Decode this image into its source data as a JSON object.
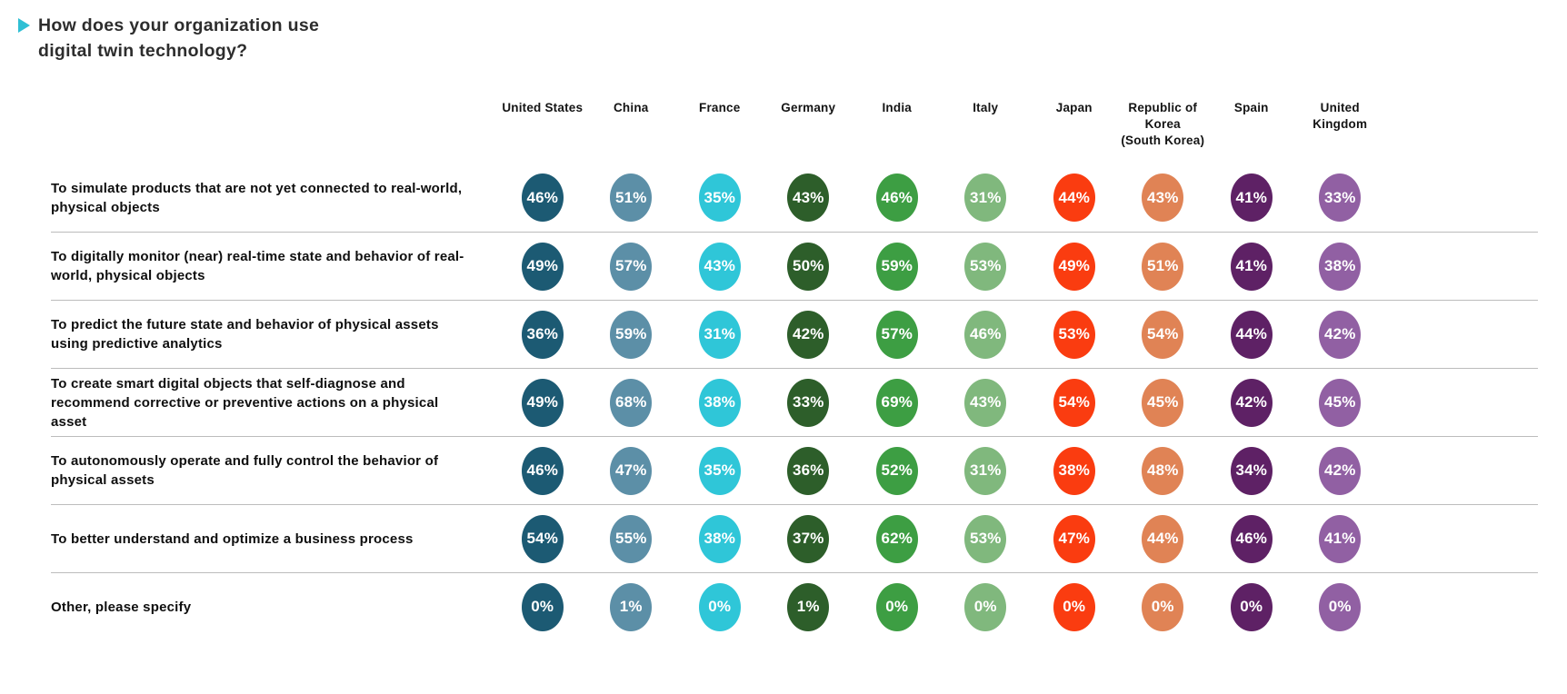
{
  "header": {
    "title": "How does your organization use digital twin technology?",
    "bullet_color": "#2fbfd4"
  },
  "chart_data": {
    "type": "table",
    "title": "How does your organization use digital twin technology?",
    "value_suffix": "%",
    "legend_position": "none",
    "columns": [
      {
        "label": "United States",
        "color": "#1c5a73"
      },
      {
        "label": "China",
        "color": "#5c8fa7"
      },
      {
        "label": "France",
        "color": "#2fc6d8"
      },
      {
        "label": "Germany",
        "color": "#2d5e2a"
      },
      {
        "label": "India",
        "color": "#3d9e43"
      },
      {
        "label": "Italy",
        "color": "#80b87d"
      },
      {
        "label": "Japan",
        "color": "#fa3c10"
      },
      {
        "label": "Republic of Korea\n(South Korea)",
        "color": "#e08355"
      },
      {
        "label": "Spain",
        "color": "#5e2165"
      },
      {
        "label": "United\nKingdom",
        "color": "#9160a3"
      }
    ],
    "rows": [
      {
        "label": "To simulate products that are not yet connected to real-world, physical objects",
        "values": [
          46,
          51,
          35,
          43,
          46,
          31,
          44,
          43,
          41,
          33
        ]
      },
      {
        "label": "To digitally monitor (near) real-time state and behavior of real-world, physical objects",
        "values": [
          49,
          57,
          43,
          50,
          59,
          53,
          49,
          51,
          41,
          38
        ]
      },
      {
        "label": "To predict the future state and behavior of physical assets using predictive analytics",
        "values": [
          36,
          59,
          31,
          42,
          57,
          46,
          53,
          54,
          44,
          42
        ]
      },
      {
        "label": "To create smart digital objects that self-diagnose and recommend corrective or preventive actions on a physical asset",
        "values": [
          49,
          68,
          38,
          33,
          69,
          43,
          54,
          45,
          42,
          45
        ]
      },
      {
        "label": "To autonomously operate and fully control the behavior of physical assets",
        "values": [
          46,
          47,
          35,
          36,
          52,
          31,
          38,
          48,
          34,
          42
        ]
      },
      {
        "label": "To better understand and optimize a business process",
        "values": [
          54,
          55,
          38,
          37,
          62,
          53,
          47,
          44,
          46,
          41
        ]
      },
      {
        "label": "Other, please specify",
        "values": [
          0,
          1,
          0,
          1,
          0,
          0,
          0,
          0,
          0,
          0
        ]
      }
    ]
  }
}
